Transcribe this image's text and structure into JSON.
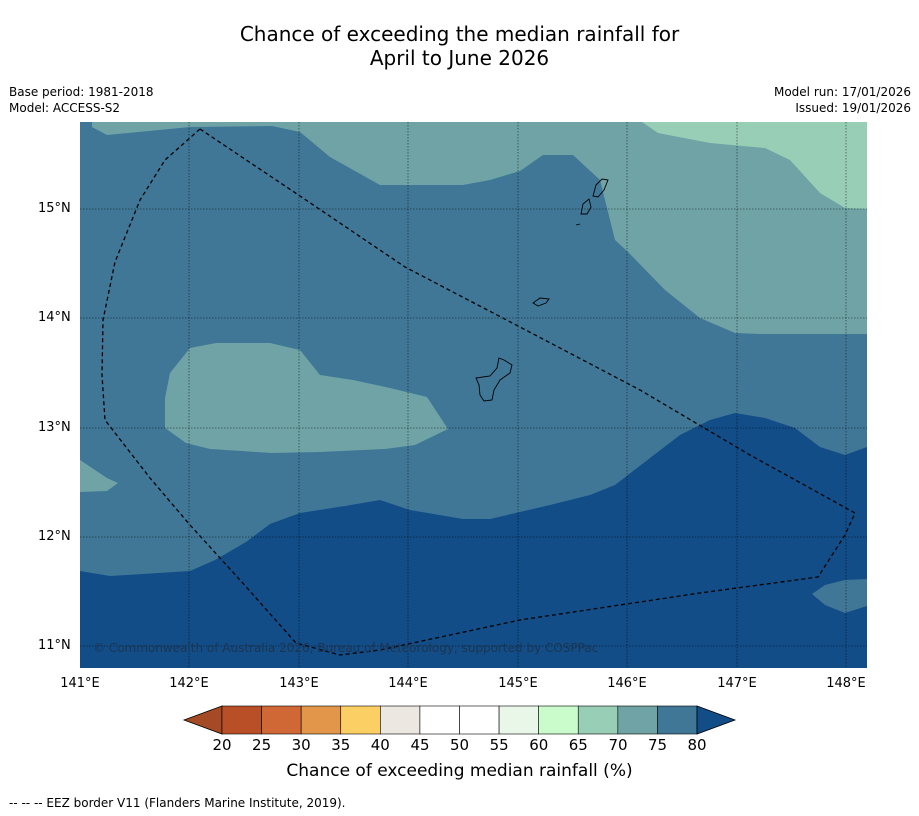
{
  "title": {
    "line1": "Chance of exceeding the median rainfall for",
    "line2": "April to June 2026"
  },
  "meta": {
    "base_period": "Base period: 1981-2018",
    "model": "Model: ACCESS-S2",
    "model_run": "Model run: 17/01/2026",
    "issued": "Issued: 19/01/2026"
  },
  "map": {
    "lon_range": [
      141.0,
      148.2
    ],
    "lat_range": [
      10.8,
      15.8
    ],
    "lon_ticks": [
      "141°E",
      "142°E",
      "143°E",
      "144°E",
      "145°E",
      "146°E",
      "147°E",
      "148°E"
    ],
    "lat_ticks": [
      "15°N",
      "14°N",
      "13°N",
      "12°N",
      "11°N"
    ],
    "copyright": "© Commonwealth of Australia 2026, Bureau of Meteorology, supported by COSPPac",
    "colors": {
      "band_70_75": "#6fa3a5",
      "band_75_80": "#407797",
      "band_above_80": "#124d88",
      "band_65_70": "#99ceb6"
    }
  },
  "colorbar": {
    "title": "Chance of exceeding median rainfall (%)",
    "ticks": [
      "20",
      "25",
      "30",
      "35",
      "40",
      "45",
      "50",
      "55",
      "60",
      "65",
      "70",
      "75",
      "80"
    ],
    "under_color": "#a44a25",
    "over_color": "#124d88",
    "segment_colors": [
      "#b84f27",
      "#d06835",
      "#e29649",
      "#fccf64",
      "#ece7e1",
      "#ffffff",
      "#ffffff",
      "#e9f7e9",
      "#c9fcca",
      "#99ceb6",
      "#6fa3a5",
      "#407797"
    ]
  },
  "footnote": "--  --  -- EEZ border V11 (Flanders Marine Institute, 2019)."
}
